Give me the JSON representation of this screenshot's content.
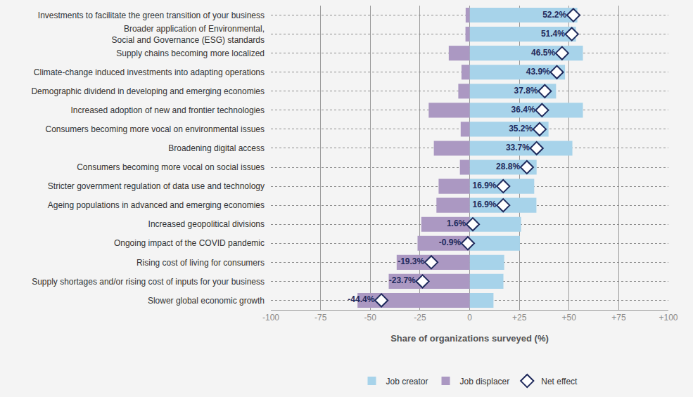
{
  "chart_data": {
    "type": "bar",
    "orientation": "horizontal",
    "stacked": true,
    "grid": true,
    "legend": "bottom",
    "data_labels": true,
    "x_label": "Share of organizations surveyed (%)",
    "categories": [
      "Investments to facilitate the green transition of your business",
      "Broader application of Environmental,\nSocial and Governance (ESG) standards",
      "Supply chains becoming more localized",
      "Climate-change induced investments into adapting operations",
      "Demographic dividend in developing and emerging economies",
      "Increased adoption of new and frontier technologies",
      "Consumers becoming more vocal on environmental issues",
      "Broadening digital access",
      "Consumers becoming more vocal on social issues",
      "Stricter government regulation of data use and technology",
      "Ageing populations in advanced and emerging economies",
      "Increased geopolitical divisions",
      "Ongoing impact of the COVID pandemic",
      "Rising cost of living for consumers",
      "Supply shortages and/or rising cost of inputs for your business",
      "Slower global economic growth"
    ],
    "series": [
      {
        "name": "Job creator",
        "type": "bar",
        "color": "#a7d3ea",
        "values": [
          54.2,
          53.5,
          57,
          48,
          43.5,
          57,
          39.7,
          51.7,
          33.7,
          32.5,
          33.6,
          25.9,
          25.3,
          17.4,
          17,
          12
        ]
      },
      {
        "name": "Job displacer",
        "type": "bar",
        "color": "#ab98c2",
        "values": [
          -2,
          -2.1,
          -10.5,
          -4.1,
          -5.7,
          -20.6,
          -4.5,
          -18,
          -4.9,
          -15.6,
          -16.7,
          -24.3,
          -26.2,
          -36.7,
          -40.7,
          -56.4
        ]
      },
      {
        "name": "Net effect",
        "type": "scatter",
        "marker": "diamond",
        "color": "#1f2a5c",
        "values": [
          52.2,
          51.4,
          46.5,
          43.9,
          37.8,
          36.4,
          35.2,
          33.7,
          28.8,
          16.9,
          16.9,
          1.6,
          -0.9,
          -19.3,
          -23.7,
          -44.4
        ],
        "value_labels": [
          "52.2%",
          "51.4%",
          "46.5%",
          "43.9%",
          "37.8%",
          "36.4%",
          "35.2%",
          "33.7%",
          "28.8%",
          "16.9%",
          "16.9%",
          "1.6%",
          "-0.9%",
          "-19.3%",
          "-23.7%",
          "-44.4%"
        ]
      }
    ],
    "xlim": [
      -100,
      100
    ],
    "xticks": [
      -100,
      -75,
      -50,
      -25,
      0,
      {
        "value": 25,
        "label": "+25"
      },
      {
        "value": 50,
        "label": "+50"
      },
      {
        "value": 75,
        "label": "+75"
      },
      {
        "value": 100,
        "label": "+100"
      }
    ]
  }
}
